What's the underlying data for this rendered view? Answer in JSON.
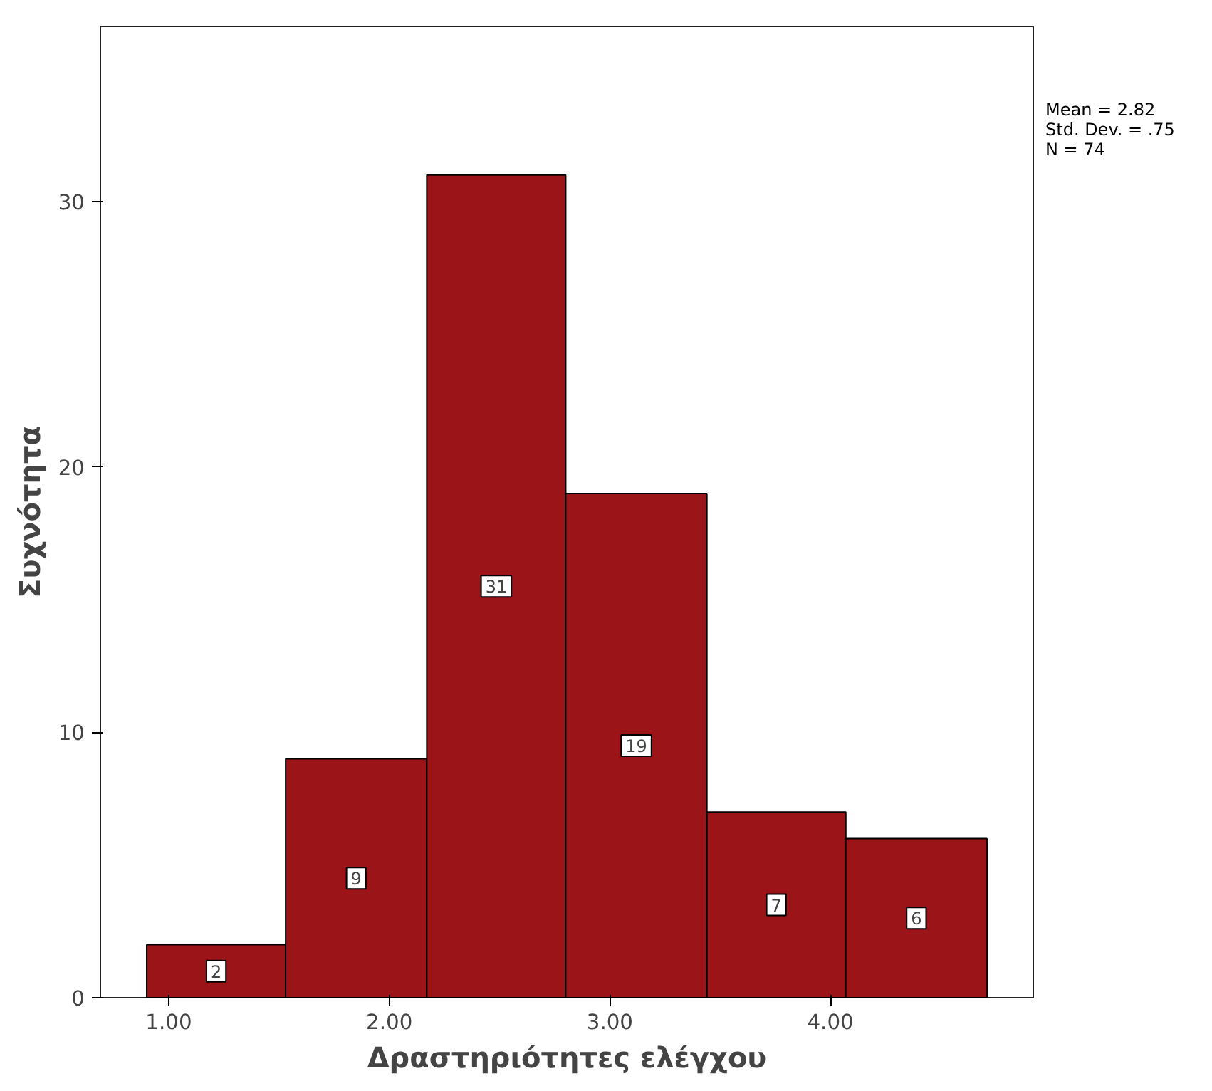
{
  "chart_data": {
    "type": "histogram",
    "xlabel": "Δραστηριότητες ελέγχου",
    "ylabel": "Συχνότητα",
    "bins": [
      0.9,
      1.53,
      2.17,
      2.8,
      3.44,
      4.07,
      4.71
    ],
    "values": [
      2,
      9,
      31,
      19,
      7,
      6
    ],
    "color": "#9b1418",
    "data_labels": true,
    "xlim": [
      0.69,
      4.92
    ],
    "ylim": [
      0,
      36.6
    ],
    "xticks": [
      {
        "value": 1,
        "label": "1.00"
      },
      {
        "value": 2,
        "label": "2.00"
      },
      {
        "value": 3,
        "label": "3.00"
      },
      {
        "value": 4,
        "label": "4.00"
      }
    ],
    "yticks": [
      0,
      10,
      20,
      30
    ],
    "grid": false,
    "annotations": [
      "Mean = 2.82",
      "Std. Dev. = .75",
      "N = 74"
    ]
  }
}
